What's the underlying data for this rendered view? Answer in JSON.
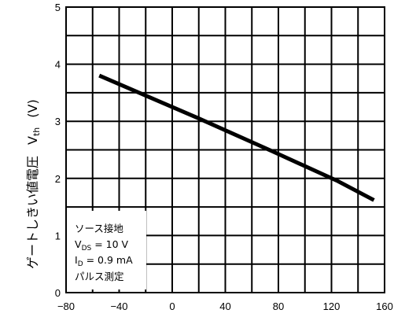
{
  "chart_data": {
    "type": "line",
    "title": "",
    "xlabel": "",
    "ylabel": "ゲートしきい値電圧 Vth (V)",
    "ylabel_parts": {
      "jp": "ゲートしきい値電圧",
      "sym": "V",
      "sym_sub": "th",
      "unit": "(V)"
    },
    "xlim": [
      -80,
      160
    ],
    "ylim": [
      0,
      5
    ],
    "x_ticks": [
      -80,
      -40,
      0,
      40,
      80,
      120,
      160
    ],
    "y_ticks": [
      0,
      1,
      2,
      3,
      4,
      5
    ],
    "grid": true,
    "series": [
      {
        "name": "",
        "x": [
          -55,
          20,
          75,
          125,
          152
        ],
        "y": [
          3.8,
          3.05,
          2.48,
          1.95,
          1.62
        ]
      }
    ],
    "annotation": {
      "line1": "ソース接地",
      "l2_sym": "V",
      "l2_sub": "DS",
      "l2_rest": " = 10 V",
      "l3_sym": "I",
      "l3_sub": "D",
      "l3_rest": " = 0.9 mA",
      "line4": "パルス測定",
      "placement": "bottom-left"
    }
  }
}
